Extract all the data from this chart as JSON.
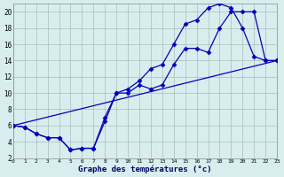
{
  "xlabel": "Graphe des températures (°c)",
  "xlim": [
    0,
    23
  ],
  "ylim": [
    2,
    21
  ],
  "xticks": [
    0,
    1,
    2,
    3,
    4,
    5,
    6,
    7,
    8,
    9,
    10,
    11,
    12,
    13,
    14,
    15,
    16,
    17,
    18,
    19,
    20,
    21,
    22,
    23
  ],
  "yticks": [
    2,
    4,
    6,
    8,
    10,
    12,
    14,
    16,
    18,
    20
  ],
  "bg_color": "#d8eeee",
  "line_color": "#0000bb",
  "curve_upper_x": [
    0,
    1,
    2,
    3,
    4,
    5,
    6,
    7,
    8,
    9,
    10,
    11,
    12,
    13,
    14,
    15,
    16,
    17,
    18,
    19,
    20,
    21,
    22,
    23
  ],
  "curve_upper_y": [
    6.0,
    5.8,
    5.0,
    4.5,
    4.5,
    3.0,
    3.2,
    3.2,
    6.5,
    10.0,
    10.5,
    11.5,
    13.0,
    13.5,
    16.0,
    18.5,
    19.0,
    20.5,
    21.0,
    20.5,
    18.0,
    14.5,
    14.0,
    14.0
  ],
  "curve_lower_x": [
    0,
    1,
    2,
    3,
    4,
    5,
    6,
    7,
    8,
    9,
    10,
    11,
    12,
    13,
    14,
    15,
    16,
    17,
    18,
    19,
    20,
    21,
    22,
    23
  ],
  "curve_lower_y": [
    6.0,
    5.8,
    5.0,
    4.5,
    4.5,
    3.0,
    3.2,
    3.2,
    7.0,
    10.0,
    10.0,
    11.0,
    10.5,
    11.0,
    13.5,
    15.5,
    15.5,
    15.0,
    18.0,
    20.0,
    20.0,
    20.0,
    14.0,
    14.0
  ],
  "baseline_x": [
    0,
    23
  ],
  "baseline_y": [
    6.0,
    14.0
  ],
  "marker": "D",
  "markersize": 2.5
}
